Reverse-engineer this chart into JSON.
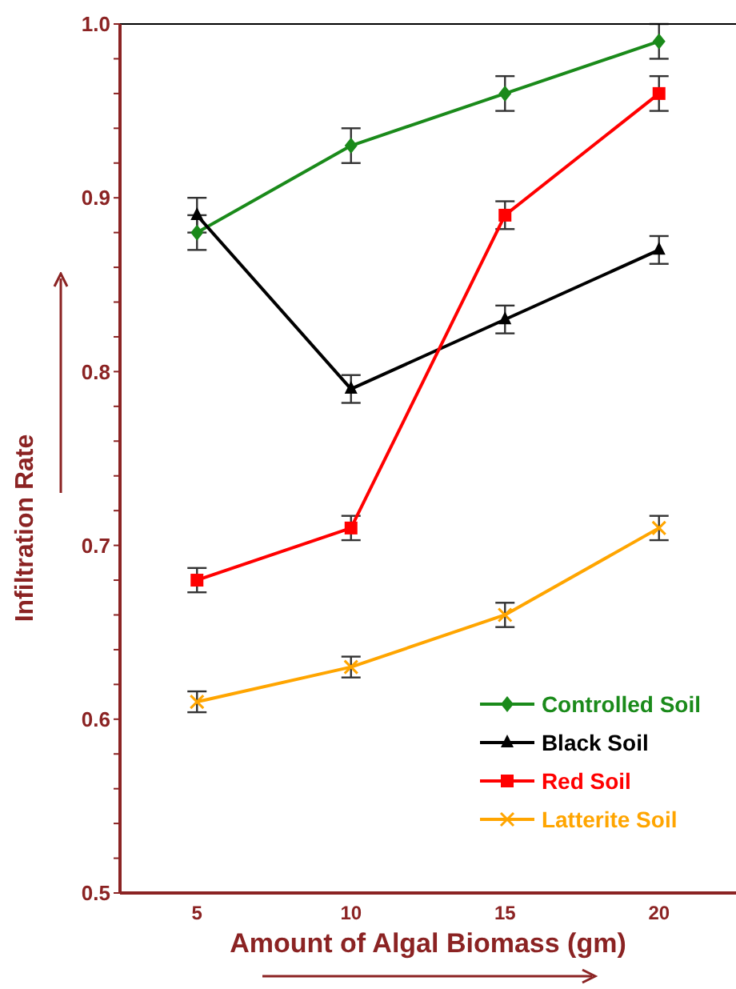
{
  "chart_data": {
    "type": "line",
    "xlabel": "Amount of Algal Biomass (gm)",
    "ylabel": "Infiltration Rate",
    "categories": [
      "5",
      "10",
      "15",
      "20"
    ],
    "ylim": [
      0.5,
      1.0
    ],
    "yticks": [
      0.5,
      {
        "value": 0.52,
        "label": null
      },
      {
        "value": 0.54,
        "label": null
      },
      {
        "value": 0.56,
        "label": null
      },
      {
        "value": 0.58,
        "label": null
      },
      0.6,
      {
        "value": 0.62,
        "label": null
      },
      {
        "value": 0.64,
        "label": null
      },
      {
        "value": 0.66,
        "label": null
      },
      {
        "value": 0.68,
        "label": null
      },
      0.7,
      {
        "value": 0.72,
        "label": null
      },
      {
        "value": 0.74,
        "label": null
      },
      {
        "value": 0.76,
        "label": null
      },
      {
        "value": 0.78,
        "label": null
      },
      0.8,
      {
        "value": 0.82,
        "label": null
      },
      {
        "value": 0.84,
        "label": null
      },
      {
        "value": 0.86,
        "label": null
      },
      {
        "value": 0.88,
        "label": null
      },
      0.9,
      {
        "value": 0.92,
        "label": null
      },
      {
        "value": 0.94,
        "label": null
      },
      {
        "value": 0.96,
        "label": null
      },
      {
        "value": 0.98,
        "label": null
      },
      {
        "value": 1,
        "label": "1.0"
      }
    ],
    "grid": false,
    "legend": "bottom right",
    "series": [
      {
        "name": "Controlled Soil",
        "color": "#1a8a1a",
        "marker": "diamond",
        "values": [
          0.88,
          0.93,
          0.96,
          0.99
        ],
        "errors": [
          0.01,
          0.01,
          0.01,
          0.01
        ]
      },
      {
        "name": "Black Soil",
        "color": "#000000",
        "marker": "triangle",
        "values": [
          0.89,
          0.79,
          0.83,
          0.87
        ],
        "errors": [
          0.01,
          0.008,
          0.008,
          0.008
        ]
      },
      {
        "name": "Red Soil",
        "color": "#ff0000",
        "marker": "square",
        "values": [
          0.68,
          0.71,
          0.89,
          0.96
        ],
        "errors": [
          0.007,
          0.007,
          0.008,
          0.01
        ]
      },
      {
        "name": "Latterite Soil",
        "color": "#ffa500",
        "marker": "cross",
        "values": [
          0.61,
          0.63,
          0.66,
          0.71
        ],
        "errors": [
          0.006,
          0.006,
          0.007,
          0.007
        ]
      }
    ]
  }
}
